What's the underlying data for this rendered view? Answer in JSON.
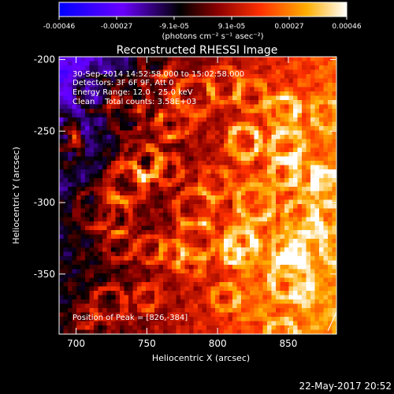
{
  "colorbar": {
    "ticks": [
      "-0.00046",
      "-0.00027",
      "-9.1e-05",
      "9.1e-05",
      "0.00027",
      "0.00046"
    ],
    "unit_label": "(photons cm⁻² s⁻¹ asec⁻²)",
    "range": [
      -0.00046,
      0.00046
    ],
    "colors": [
      "#0000ff",
      "#6a00ff",
      "#000000",
      "#8a0000",
      "#ff3000",
      "#ffae00",
      "#ffffff"
    ]
  },
  "chart_data": {
    "type": "heatmap",
    "title": "Reconstructed RHESSI Image",
    "xlabel": "Heliocentric X (arcsec)",
    "ylabel": "Heliocentric Y (arcsec)",
    "xlim": [
      688,
      884
    ],
    "ylim": [
      -392,
      -198
    ],
    "xticks": [
      "700",
      "750",
      "800",
      "850"
    ],
    "yticks": [
      "-200",
      "-250",
      "-300",
      "-350"
    ],
    "peak": [
      826,
      -384
    ],
    "annotations": {
      "time_range": "30-Sep-2014 14:52:58.000 to 15:02:58.000",
      "detectors": "Detectors: 3F 6F 9F, Att 0",
      "energy_range": "Energy Range: 12.0 - 25.0 keV",
      "method_counts": "Clean    Total counts: 3.58E+03",
      "peak_label": "Position of Peak = [826,-384]"
    }
  },
  "footer": {
    "date": "22-May-2017 20:52"
  }
}
